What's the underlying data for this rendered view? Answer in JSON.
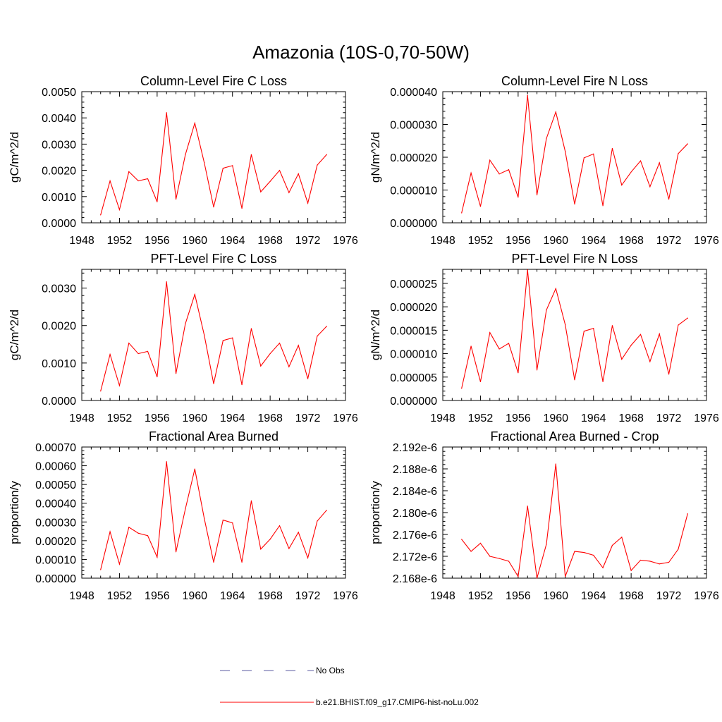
{
  "figure_title": "Amazonia (10S-0,70-50W)",
  "legend": [
    {
      "label": "No Obs",
      "style": "dashed",
      "color": "#5a5aa0"
    },
    {
      "label": "b.e21.BHIST.f09_g17.CMIP6-hist-noLu.002",
      "style": "solid",
      "color": "#ff0000"
    }
  ],
  "chart_data": [
    {
      "type": "line",
      "title": "Column-Level Fire C Loss",
      "ylabel": "gC/m^2/d",
      "xlabel": "",
      "xlim": [
        1948,
        1976
      ],
      "ylim": [
        0,
        0.005
      ],
      "x_ticks": [
        1948,
        1952,
        1956,
        1960,
        1964,
        1968,
        1972,
        1976
      ],
      "y_ticks": [
        "0.0000",
        "0.0010",
        "0.0020",
        "0.0030",
        "0.0040",
        "0.0050"
      ],
      "y_tick_values": [
        0,
        0.001,
        0.002,
        0.003,
        0.004,
        0.005
      ],
      "series": [
        {
          "name": "b.e21.BHIST.f09_g17.CMIP6-hist-noLu.002",
          "color": "#ff0000",
          "x": [
            1950,
            1951,
            1952,
            1953,
            1954,
            1955,
            1956,
            1957,
            1958,
            1959,
            1960,
            1961,
            1962,
            1963,
            1964,
            1965,
            1966,
            1967,
            1968,
            1969,
            1970,
            1971,
            1972,
            1973,
            1974
          ],
          "values": [
            0.0003,
            0.0016,
            0.0005,
            0.00195,
            0.0016,
            0.00168,
            0.0008,
            0.0042,
            0.0009,
            0.0026,
            0.0038,
            0.0023,
            0.0006,
            0.00208,
            0.00218,
            0.00055,
            0.0026,
            0.00118,
            0.00158,
            0.002,
            0.00115,
            0.00187,
            0.00075,
            0.0022,
            0.0026
          ]
        }
      ]
    },
    {
      "type": "line",
      "title": "Column-Level Fire N Loss",
      "ylabel": "gN/m^2/d",
      "xlabel": "",
      "xlim": [
        1948,
        1976
      ],
      "ylim": [
        0,
        4e-05
      ],
      "x_ticks": [
        1948,
        1952,
        1956,
        1960,
        1964,
        1968,
        1972,
        1976
      ],
      "y_ticks": [
        "0.000000",
        "0.000010",
        "0.000020",
        "0.000030",
        "0.000040"
      ],
      "y_tick_values": [
        0,
        1e-05,
        2e-05,
        3e-05,
        4e-05
      ],
      "series": [
        {
          "name": "b.e21.BHIST.f09_g17.CMIP6-hist-noLu.002",
          "color": "#ff0000",
          "x": [
            1950,
            1951,
            1952,
            1953,
            1954,
            1955,
            1956,
            1957,
            1958,
            1959,
            1960,
            1961,
            1962,
            1963,
            1964,
            1965,
            1966,
            1967,
            1968,
            1969,
            1970,
            1971,
            1972,
            1973,
            1974
          ],
          "values": [
            3e-06,
            1.52e-05,
            5e-06,
            1.91e-05,
            1.49e-05,
            1.62e-05,
            7.8e-06,
            3.89e-05,
            8.5e-06,
            2.57e-05,
            3.38e-05,
            2.18e-05,
            5.7e-06,
            1.98e-05,
            2.1e-05,
            5.2e-06,
            2.27e-05,
            1.15e-05,
            1.55e-05,
            1.89e-05,
            1.1e-05,
            1.83e-05,
            7.2e-06,
            2.11e-05,
            2.41e-05
          ]
        }
      ]
    },
    {
      "type": "line",
      "title": "PFT-Level Fire C Loss",
      "ylabel": "gC/m^2/d",
      "xlabel": "",
      "xlim": [
        1948,
        1976
      ],
      "ylim": [
        0,
        0.0035
      ],
      "x_ticks": [
        1948,
        1952,
        1956,
        1960,
        1964,
        1968,
        1972,
        1976
      ],
      "y_ticks": [
        "0.0000",
        "0.0010",
        "0.0020",
        "0.0030"
      ],
      "y_tick_values": [
        0,
        0.001,
        0.002,
        0.003
      ],
      "series": [
        {
          "name": "b.e21.BHIST.f09_g17.CMIP6-hist-noLu.002",
          "color": "#ff0000",
          "x": [
            1950,
            1951,
            1952,
            1953,
            1954,
            1955,
            1956,
            1957,
            1958,
            1959,
            1960,
            1961,
            1962,
            1963,
            1964,
            1965,
            1966,
            1967,
            1968,
            1969,
            1970,
            1971,
            1972,
            1973,
            1974
          ],
          "values": [
            0.00025,
            0.00123,
            0.0004,
            0.00153,
            0.00125,
            0.00131,
            0.00063,
            0.00317,
            0.00072,
            0.00205,
            0.00283,
            0.00175,
            0.00045,
            0.0016,
            0.00167,
            0.00042,
            0.00192,
            0.00092,
            0.00125,
            0.00153,
            0.0009,
            0.00147,
            0.00058,
            0.00172,
            0.00198
          ]
        }
      ]
    },
    {
      "type": "line",
      "title": "PFT-Level Fire N Loss",
      "ylabel": "gN/m^2/d",
      "xlabel": "",
      "xlim": [
        1948,
        1976
      ],
      "ylim": [
        0,
        2.8e-05
      ],
      "x_ticks": [
        1948,
        1952,
        1956,
        1960,
        1964,
        1968,
        1972,
        1976
      ],
      "y_ticks": [
        "0.000000",
        "0.000005",
        "0.000010",
        "0.000015",
        "0.000020",
        "0.000025"
      ],
      "y_tick_values": [
        0,
        5e-06,
        1e-05,
        1.5e-05,
        2e-05,
        2.5e-05
      ],
      "series": [
        {
          "name": "b.e21.BHIST.f09_g17.CMIP6-hist-noLu.002",
          "color": "#ff0000",
          "x": [
            1950,
            1951,
            1952,
            1953,
            1954,
            1955,
            1956,
            1957,
            1958,
            1959,
            1960,
            1961,
            1962,
            1963,
            1964,
            1965,
            1966,
            1967,
            1968,
            1969,
            1970,
            1971,
            1972,
            1973,
            1974
          ],
          "values": [
            2.6e-06,
            1.16e-05,
            4e-06,
            1.45e-05,
            1.1e-05,
            1.22e-05,
            5.9e-06,
            2.79e-05,
            6.5e-06,
            1.93e-05,
            2.39e-05,
            1.62e-05,
            4.4e-06,
            1.48e-05,
            1.54e-05,
            4e-06,
            1.6e-05,
            8.8e-06,
            1.18e-05,
            1.41e-05,
            8.3e-06,
            1.42e-05,
            5.6e-06,
            1.61e-05,
            1.76e-05
          ]
        }
      ]
    },
    {
      "type": "line",
      "title": "Fractional Area Burned",
      "ylabel": "proportion/y",
      "xlabel": "",
      "xlim": [
        1948,
        1976
      ],
      "ylim": [
        0,
        0.0007
      ],
      "x_ticks": [
        1948,
        1952,
        1956,
        1960,
        1964,
        1968,
        1972,
        1976
      ],
      "y_ticks": [
        "0.00000",
        "0.00010",
        "0.00020",
        "0.00030",
        "0.00040",
        "0.00050",
        "0.00060",
        "0.00070"
      ],
      "y_tick_values": [
        0,
        0.0001,
        0.0002,
        0.0003,
        0.0004,
        0.0005,
        0.0006,
        0.0007
      ],
      "series": [
        {
          "name": "b.e21.BHIST.f09_g17.CMIP6-hist-noLu.002",
          "color": "#ff0000",
          "x": [
            1950,
            1951,
            1952,
            1953,
            1954,
            1955,
            1956,
            1957,
            1958,
            1959,
            1960,
            1961,
            1962,
            1963,
            1964,
            1965,
            1966,
            1967,
            1968,
            1969,
            1970,
            1971,
            1972,
            1973,
            1974
          ],
          "values": [
            4.5e-05,
            0.000248,
            7.5e-05,
            0.000272,
            0.00024,
            0.000227,
            0.000112,
            0.000622,
            0.00014,
            0.00037,
            0.000583,
            0.00032,
            8.5e-05,
            0.00031,
            0.000295,
            8.5e-05,
            0.000413,
            0.000155,
            0.000208,
            0.00028,
            0.000158,
            0.000245,
            0.000108,
            0.000305,
            0.000363
          ]
        }
      ]
    },
    {
      "type": "line",
      "title": "Fractional Area Burned - Crop",
      "ylabel": "proportion/y",
      "xlabel": "",
      "xlim": [
        1948,
        1976
      ],
      "ylim": [
        2.168e-06,
        2.192e-06
      ],
      "x_ticks": [
        1948,
        1952,
        1956,
        1960,
        1964,
        1968,
        1972,
        1976
      ],
      "y_ticks": [
        "2.168e-6",
        "2.172e-6",
        "2.176e-6",
        "2.180e-6",
        "2.184e-6",
        "2.188e-6",
        "2.192e-6"
      ],
      "y_tick_values": [
        2.168e-06,
        2.172e-06,
        2.176e-06,
        2.18e-06,
        2.184e-06,
        2.188e-06,
        2.192e-06
      ],
      "series": [
        {
          "name": "b.e21.BHIST.f09_g17.CMIP6-hist-noLu.002",
          "color": "#ff0000",
          "x": [
            1950,
            1951,
            1952,
            1953,
            1954,
            1955,
            1956,
            1957,
            1958,
            1959,
            1960,
            1961,
            1962,
            1963,
            1964,
            1965,
            1966,
            1967,
            1968,
            1969,
            1970,
            1971,
            1972,
            1973,
            1974
          ],
          "values": [
            2.1751e-06,
            2.1729e-06,
            2.1744e-06,
            2.172e-06,
            2.1716e-06,
            2.1711e-06,
            2.1683e-06,
            2.1812e-06,
            2.168e-06,
            2.1742e-06,
            2.1889e-06,
            2.1683e-06,
            2.1729e-06,
            2.1727e-06,
            2.1722e-06,
            2.1699e-06,
            2.174e-06,
            2.1755e-06,
            2.1694e-06,
            2.1713e-06,
            2.1711e-06,
            2.1706e-06,
            2.1709e-06,
            2.1733e-06,
            2.1798e-06
          ]
        }
      ]
    }
  ]
}
